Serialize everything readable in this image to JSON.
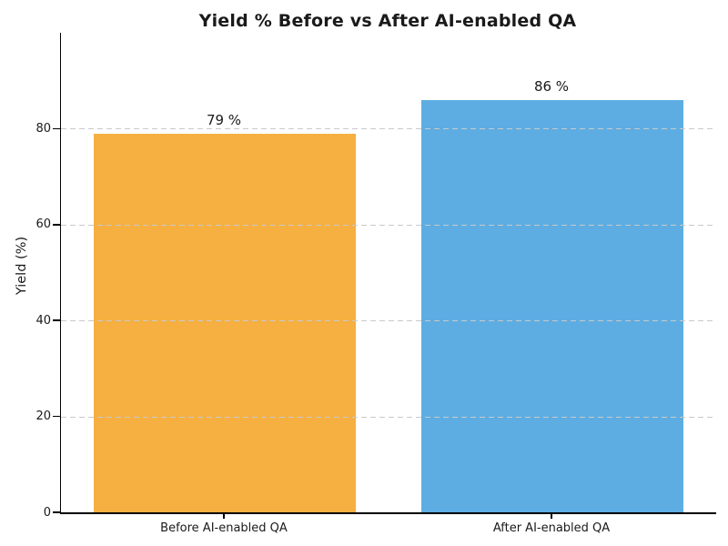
{
  "chart_data": {
    "type": "bar",
    "title": "Yield % Before vs After AI-enabled QA",
    "ylabel": "Yield (%)",
    "xlabel": "",
    "categories": [
      "Before AI-enabled QA",
      "After AI-enabled QA"
    ],
    "values": [
      79,
      86
    ],
    "value_labels": [
      "79 %",
      "86 %"
    ],
    "bar_colors": [
      "#F5B041",
      "#5DADE2"
    ],
    "ylim": [
      0,
      100
    ],
    "yticks": [
      0,
      20,
      40,
      60,
      80
    ],
    "bar_width_fraction": 0.8,
    "grid": {
      "axis": "y",
      "style": "dashed",
      "color": "#c9c9c9",
      "over_bars": true
    },
    "legend": "none",
    "background": "#ffffff",
    "text_color": "#1a1a1a",
    "spines": [
      "left",
      "bottom"
    ]
  }
}
